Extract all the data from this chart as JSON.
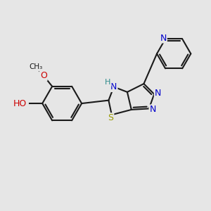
{
  "bg_color": "#e6e6e6",
  "bond_color": "#1a1a1a",
  "bond_width": 1.5,
  "atom_colors": {
    "C": "#1a1a1a",
    "N": "#0000cc",
    "O": "#cc0000",
    "S": "#999900",
    "H_N": "#2e8b8b",
    "H_O": "#cc0000"
  },
  "font_size": 9,
  "fig_size": [
    3.0,
    3.0
  ],
  "dpi": 100,
  "xlim": [
    0,
    10
  ],
  "ylim": [
    0,
    10
  ]
}
